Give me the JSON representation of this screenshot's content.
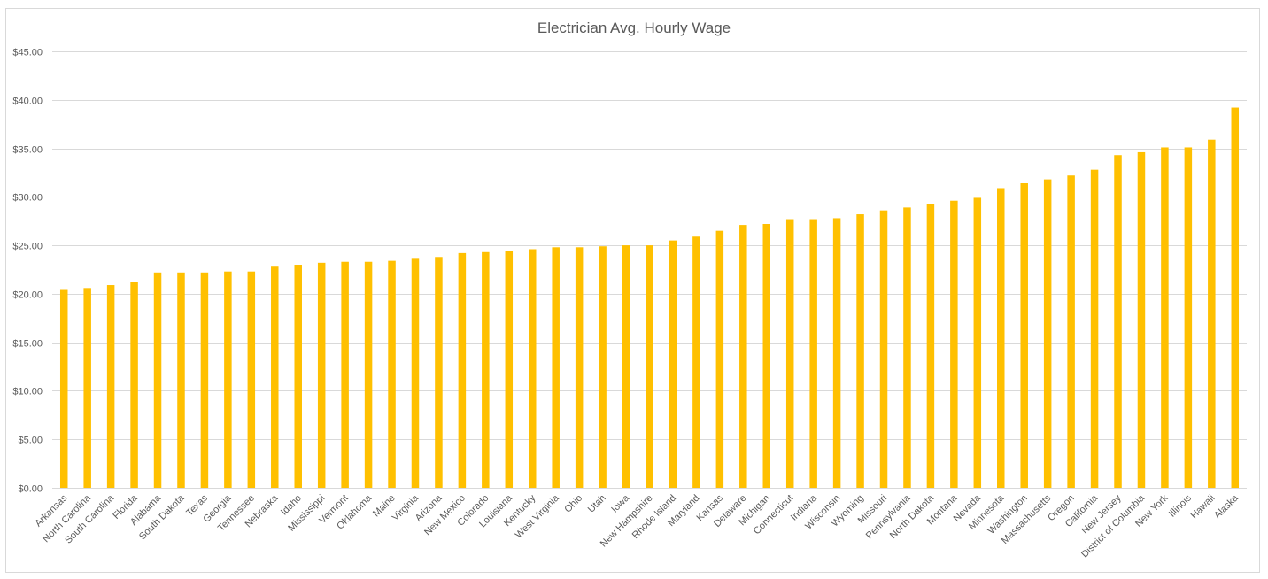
{
  "chart_data": {
    "type": "bar",
    "title": "Electrician Avg. Hourly Wage",
    "xlabel": "",
    "ylabel": "",
    "ylim": [
      0,
      45
    ],
    "y_ticks": [
      "$0.00",
      "$5.00",
      "$10.00",
      "$15.00",
      "$20.00",
      "$25.00",
      "$30.00",
      "$35.00",
      "$40.00",
      "$45.00"
    ],
    "grid": true,
    "legend": "none",
    "bar_color": "#FFC000",
    "categories": [
      "Arkansas",
      "North Carolina",
      "South Carolina",
      "Florida",
      "Alabama",
      "South Dakota",
      "Texas",
      "Georgia",
      "Tennessee",
      "Nebraska",
      "Idaho",
      "Mississippi",
      "Vermont",
      "Oklahoma",
      "Maine",
      "Virginia",
      "Arizona",
      "New Mexico",
      "Colorado",
      "Louisiana",
      "Kentucky",
      "West Virginia",
      "Ohio",
      "Utah",
      "Iowa",
      "New Hampshire",
      "Rhode Island",
      "Maryland",
      "Kansas",
      "Delaware",
      "Michigan",
      "Connecticut",
      "Indiana",
      "Wisconsin",
      "Wyoming",
      "Missouri",
      "Pennsylvania",
      "North Dakota",
      "Montana",
      "Nevada",
      "Minnesota",
      "Washington",
      "Massachusetts",
      "Oregon",
      "California",
      "New Jersey",
      "District of Columbia",
      "New York",
      "Illinois",
      "Hawaii",
      "Alaska"
    ],
    "values": [
      20.4,
      20.6,
      20.9,
      21.2,
      22.2,
      22.2,
      22.2,
      22.3,
      22.3,
      22.8,
      23.0,
      23.2,
      23.3,
      23.3,
      23.4,
      23.7,
      23.8,
      24.2,
      24.3,
      24.4,
      24.6,
      24.8,
      24.8,
      24.9,
      25.0,
      25.0,
      25.5,
      25.9,
      26.5,
      27.1,
      27.2,
      27.7,
      27.7,
      27.8,
      28.2,
      28.6,
      28.9,
      29.3,
      29.6,
      29.9,
      30.9,
      31.4,
      31.8,
      32.2,
      32.8,
      34.3,
      34.6,
      35.1,
      35.1,
      35.9,
      39.2
    ]
  }
}
